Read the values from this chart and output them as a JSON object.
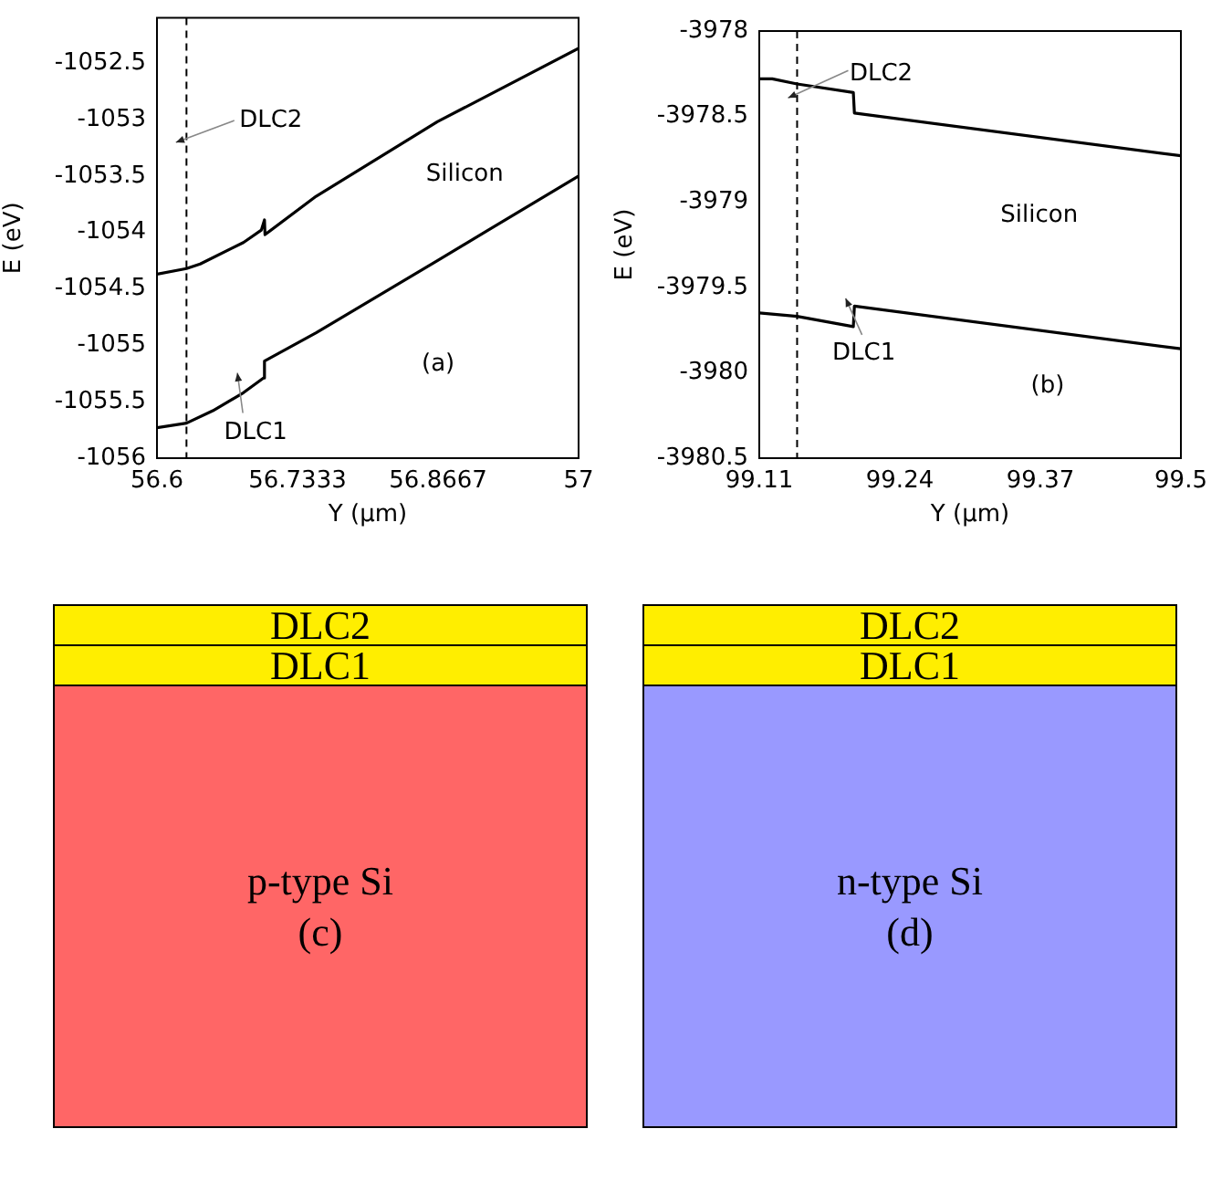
{
  "chart_data": [
    {
      "type": "line",
      "xlabel": "Y (μm)",
      "ylabel": "E (eV)",
      "xlim": [
        56.6,
        57
      ],
      "xticks": [
        56.6,
        56.7333,
        56.8667,
        57
      ],
      "ylim": [
        -1056,
        -1052.1
      ],
      "yticks": [
        -1056,
        -1055.5,
        -1055,
        -1054.5,
        -1054,
        -1053.5,
        -1053,
        -1052.5
      ],
      "grid": false,
      "legend": false,
      "marker": "none",
      "line_style": "solid",
      "ref_lines": [
        {
          "axis": "x",
          "value": 56.628,
          "line_style": "dashed",
          "color": "#000000"
        }
      ],
      "annotations": [
        "DLC2",
        "Silicon",
        "(a)",
        "DLC1"
      ],
      "series": [
        {
          "color": "#000000",
          "x": [
            56.6,
            56.628,
            56.641,
            56.682,
            56.699,
            56.702,
            56.7025,
            56.751,
            56.866,
            57
          ],
          "values": [
            -1054.37,
            -1054.32,
            -1054.28,
            -1054.09,
            -1053.98,
            -1053.89,
            -1054.02,
            -1053.68,
            -1053.02,
            -1052.37
          ]
        },
        {
          "color": "#000000",
          "x": [
            56.6,
            56.628,
            56.653,
            56.682,
            56.701,
            56.702,
            56.751,
            56.866,
            57
          ],
          "values": [
            -1055.73,
            -1055.69,
            -1055.58,
            -1055.42,
            -1055.29,
            -1055.14,
            -1054.89,
            -1054.25,
            -1053.5
          ]
        }
      ]
    },
    {
      "type": "line",
      "xlabel": "Y (μm)",
      "ylabel": "E (eV)",
      "xlim": [
        99.11,
        99.5
      ],
      "xticks": [
        99.11,
        99.24,
        99.37,
        99.5
      ],
      "ylim": [
        -3980.5,
        -3978
      ],
      "yticks": [
        -3980.5,
        -3980,
        -3979.5,
        -3979,
        -3978.5,
        -3978
      ],
      "grid": false,
      "legend": false,
      "marker": "none",
      "line_style": "solid",
      "ref_lines": [
        {
          "axis": "x",
          "value": 99.145,
          "line_style": "dashed",
          "color": "#000000"
        }
      ],
      "annotations": [
        "DLC2",
        "Silicon",
        "(b)",
        "DLC1"
      ],
      "series": [
        {
          "color": "#000000",
          "x": [
            99.11,
            99.122,
            99.145,
            99.197,
            99.198,
            99.5
          ],
          "values": [
            -3978.28,
            -3978.28,
            -3978.31,
            -3978.36,
            -3978.48,
            -3978.73
          ]
        },
        {
          "color": "#000000",
          "x": [
            99.11,
            99.145,
            99.197,
            99.198,
            99.5
          ],
          "values": [
            -3979.65,
            -3979.67,
            -3979.73,
            -3979.61,
            -3979.86
          ]
        }
      ]
    },
    {
      "type": "other",
      "annotations": [
        "DLC2",
        "DLC1",
        "p-type Si",
        "(c)"
      ]
    },
    {
      "type": "other",
      "annotations": [
        "DLC2",
        "DLC1",
        "n-type Si",
        "(d)"
      ]
    }
  ]
}
